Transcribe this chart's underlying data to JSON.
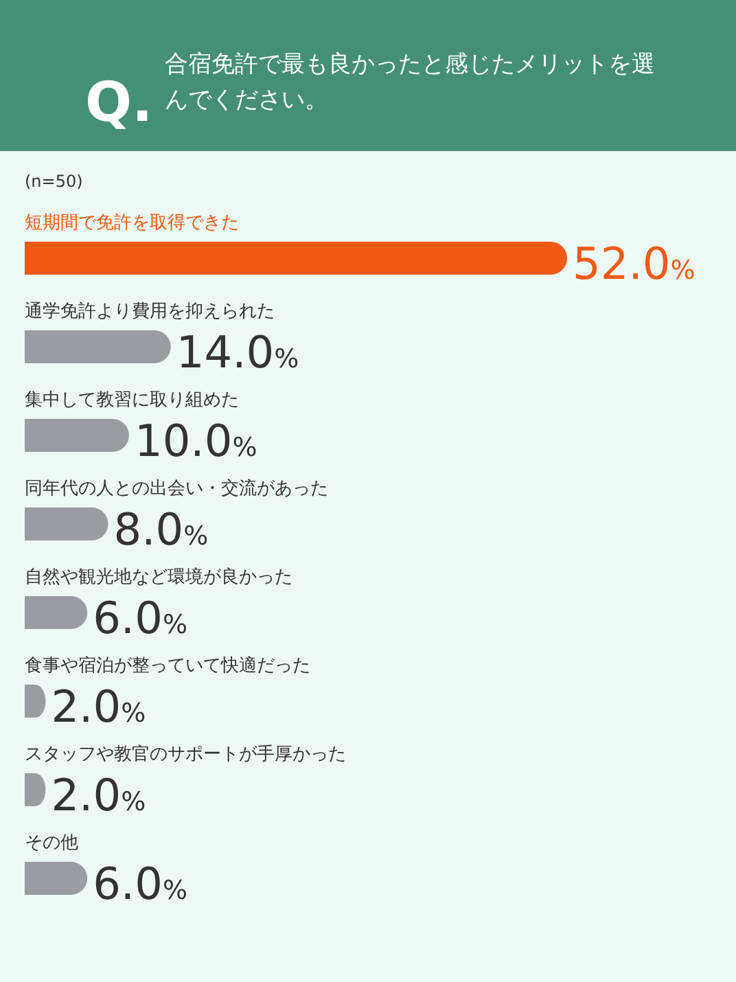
{
  "chart_data": {
    "type": "bar",
    "orientation": "horizontal",
    "title": "合宿免許で最も良かったと感じたメリットを選んでください。",
    "subtitle": "(n=50)",
    "annotations": [
      "Q."
    ],
    "categories": [
      "短期間で免許を取得できた",
      "通学免許より費用を抑えられた",
      "集中して教習に取り組めた",
      "同年代の人との出会い・交流があった",
      "自然や観光地など環境が良かった",
      "食事や宿泊が整っていて快適だった",
      "スタッフや教官のサポートが手厚かった",
      "その他"
    ],
    "values": [
      52.0,
      14.0,
      10.0,
      8.0,
      6.0,
      2.0,
      2.0,
      6.0
    ],
    "value_labels": [
      "52.0%",
      "14.0%",
      "10.0%",
      "8.0%",
      "6.0%",
      "2.0%",
      "2.0%",
      "6.0%"
    ],
    "colors": [
      "#f05a14",
      "#9b9ca1",
      "#9b9ca1",
      "#9b9ca1",
      "#9b9ca1",
      "#9b9ca1",
      "#9b9ca1",
      "#9b9ca1"
    ]
  }
}
